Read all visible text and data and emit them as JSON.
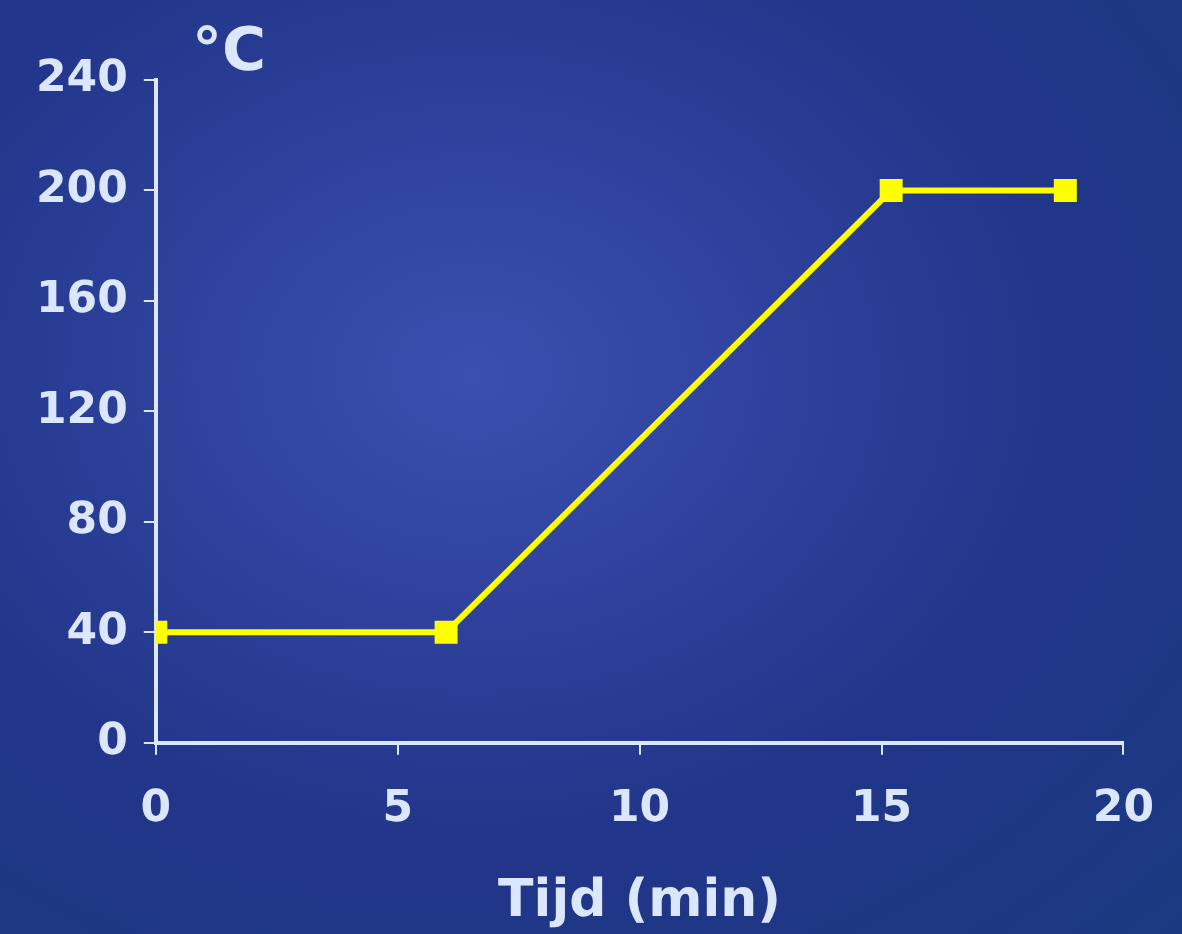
{
  "chart_data": {
    "type": "line",
    "xlabel": "Tijd (min)",
    "ylabel": "°C",
    "x": [
      0,
      6,
      15.2,
      18.8
    ],
    "series": [
      {
        "color": "#ffff00",
        "values": [
          40,
          40,
          200,
          200
        ]
      }
    ],
    "xlim": [
      0,
      20
    ],
    "xticks": [
      0,
      5,
      10,
      15,
      20
    ],
    "ylim": [
      0,
      240
    ],
    "yticks": [
      0,
      40,
      80,
      120,
      160,
      200,
      240
    ],
    "grid": false,
    "legend": false,
    "marker": "square",
    "line_style": "solid"
  }
}
